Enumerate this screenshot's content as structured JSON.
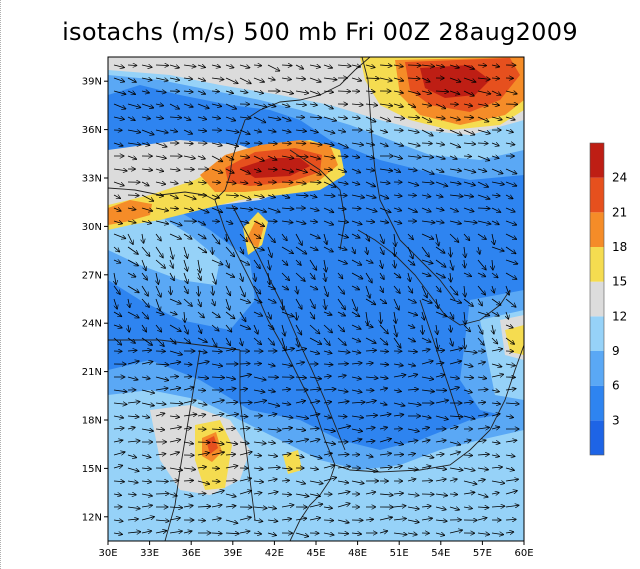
{
  "title": "isotachs (m/s) 500 mb Fri 00Z 28aug2009",
  "map": {
    "lat_labels": [
      "39N",
      "36N",
      "33N",
      "30N",
      "27N",
      "24N",
      "21N",
      "18N",
      "15N",
      "12N"
    ],
    "lon_labels": [
      "30E",
      "33E",
      "36E",
      "39E",
      "42E",
      "45E",
      "48E",
      "51E",
      "54E",
      "57E",
      "60E"
    ],
    "lat_values": [
      39,
      36,
      33,
      30,
      27,
      24,
      21,
      18,
      15,
      12
    ],
    "lon_values": [
      30,
      33,
      36,
      39,
      42,
      45,
      48,
      51,
      54,
      57,
      60
    ],
    "lat_range": [
      10.5,
      40.5
    ],
    "lon_range": [
      30,
      60
    ]
  },
  "colorbar": {
    "labels": [
      "24",
      "21",
      "18",
      "15",
      "12",
      "9",
      "6",
      "3"
    ],
    "bins": [
      {
        "min": 0,
        "max": 3,
        "color": "#1e64e6"
      },
      {
        "min": 3,
        "max": 6,
        "color": "#2e84f0"
      },
      {
        "min": 6,
        "max": 9,
        "color": "#5aa8f5"
      },
      {
        "min": 9,
        "max": 12,
        "color": "#96d2f8"
      },
      {
        "min": 12,
        "max": 15,
        "color": "#dcdcdc"
      },
      {
        "min": 15,
        "max": 18,
        "color": "#f5dc50"
      },
      {
        "min": 18,
        "max": 21,
        "color": "#f58c28"
      },
      {
        "min": 21,
        "max": 24,
        "color": "#e6501e"
      },
      {
        "min": 24,
        "max": 27,
        "color": "#be1e14"
      }
    ]
  }
}
